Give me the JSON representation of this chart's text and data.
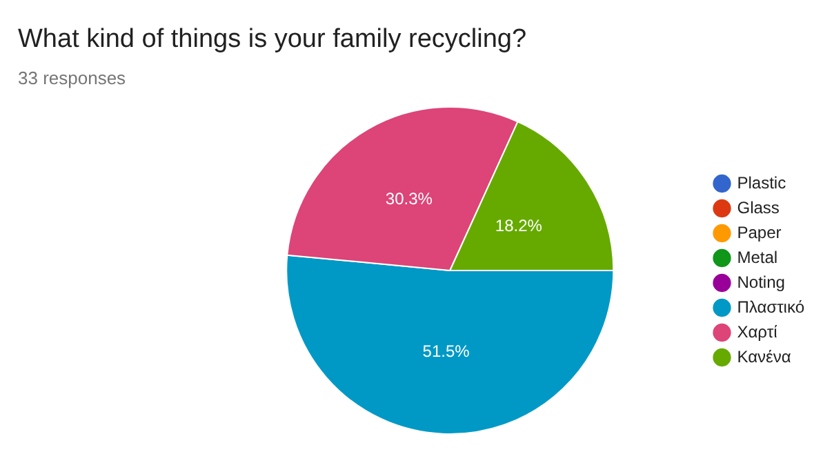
{
  "chart_data": {
    "type": "pie",
    "title": "What kind of things is your family recycling?",
    "subtitle": "33 responses",
    "categories": [
      "Plastic",
      "Glass",
      "Paper",
      "Metal",
      "Noting",
      "Πλαστικό",
      "Χαρτί",
      "Κανένα"
    ],
    "values": [
      0,
      0,
      0,
      0,
      0,
      51.5,
      30.3,
      18.2
    ],
    "value_labels": [
      null,
      null,
      null,
      null,
      null,
      "51.5%",
      "30.3%",
      "18.2%"
    ],
    "colors": [
      "#3366cc",
      "#dc3912",
      "#ff9900",
      "#109618",
      "#990099",
      "#0099c6",
      "#dd4477",
      "#66aa00"
    ],
    "legend": "right"
  }
}
